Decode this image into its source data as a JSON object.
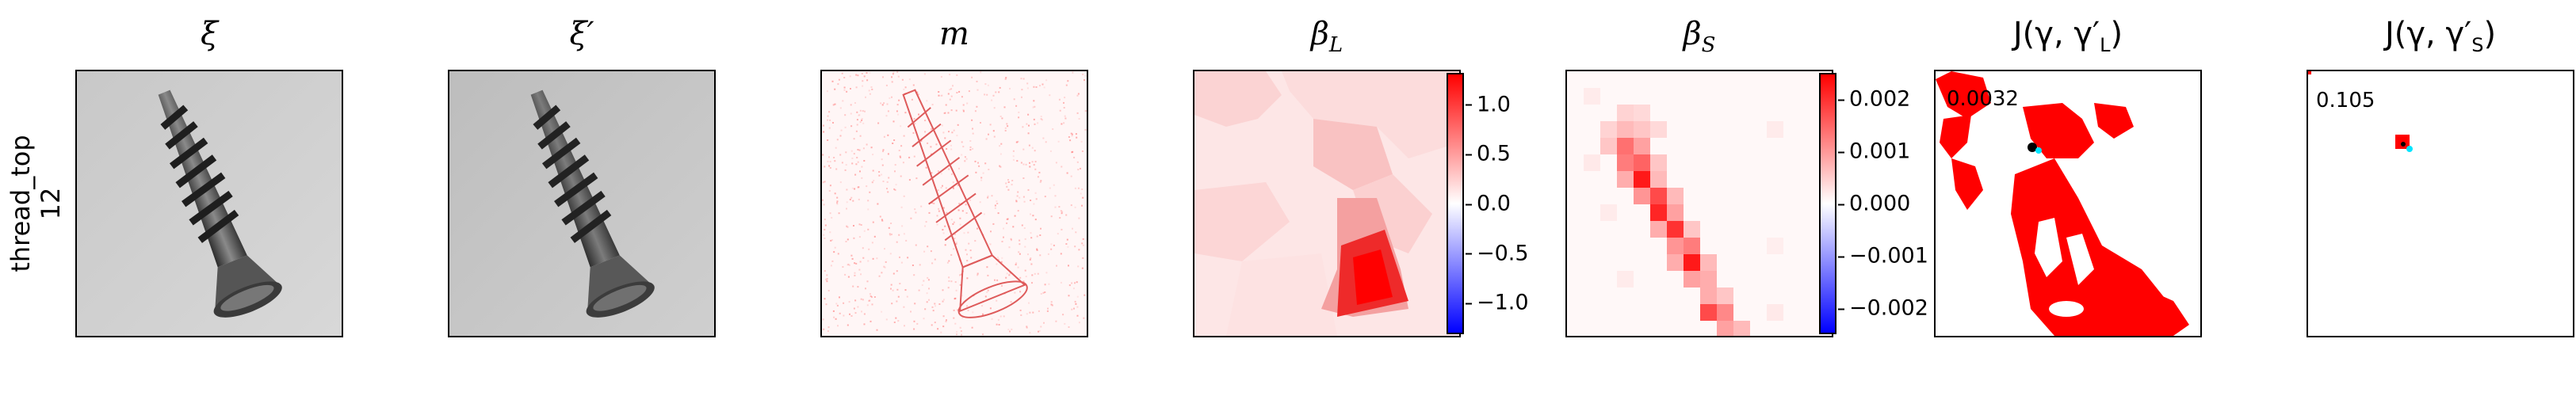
{
  "row_label": {
    "line1": "thread_top",
    "line2": "12"
  },
  "panels": {
    "xi": {
      "title": "ξ"
    },
    "xi_prime": {
      "title": "ξ′"
    },
    "m": {
      "title": "m"
    },
    "beta_L": {
      "title": "β",
      "sub": "L"
    },
    "beta_S": {
      "title": "β",
      "sub": "S"
    },
    "J_L": {
      "title": "J(γ, γ′",
      "sub": "L",
      "close": ")",
      "annotation": "0.0032"
    },
    "J_S": {
      "title": "J(γ, γ′",
      "sub": "S",
      "close": ")",
      "annotation": "0.105"
    }
  },
  "colorbars": {
    "beta_L": {
      "ticks": [
        "1.0",
        "0.5",
        "0.0",
        "−0.5",
        "−1.0"
      ]
    },
    "beta_S": {
      "ticks": [
        "0.002",
        "0.001",
        "0.000",
        "−0.001",
        "−0.002"
      ]
    }
  },
  "colors": {
    "positive": "#ff0000",
    "negative": "#0000ff",
    "marker_dark": "#000000",
    "marker_cyan": "#00e5ff"
  }
}
